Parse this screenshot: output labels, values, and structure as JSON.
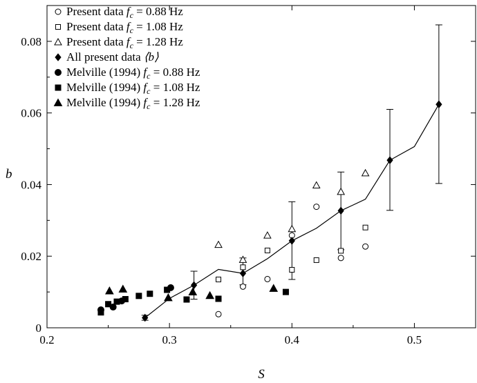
{
  "chart_data": {
    "type": "scatter",
    "xlabel": "S",
    "ylabel": "b",
    "xlim": [
      0.2,
      0.55
    ],
    "ylim": [
      0,
      0.09
    ],
    "x_ticks": [
      "0.2",
      "0.3",
      "0.4",
      "0.5"
    ],
    "y_ticks": [
      "0",
      "0.02",
      "0.04",
      "0.06",
      "0.08"
    ],
    "legend_position": "top-left",
    "series": [
      {
        "name": "Present data  f_c = 0.88 Hz",
        "marker": "circle-open",
        "legend_prefix": "Present data ",
        "legend_f": "f",
        "legend_sub": "c",
        "legend_suffix": " = 0.88 Hz",
        "points": [
          [
            0.34,
            0.0038
          ],
          [
            0.36,
            0.0115
          ],
          [
            0.38,
            0.0136
          ],
          [
            0.4,
            0.0258
          ],
          [
            0.42,
            0.0338
          ],
          [
            0.44,
            0.0195
          ],
          [
            0.46,
            0.0227
          ]
        ]
      },
      {
        "name": "Present data  f_c = 1.08 Hz",
        "marker": "square-open",
        "legend_prefix": "Present data ",
        "legend_f": "f",
        "legend_sub": "c",
        "legend_suffix": " = 1.08 Hz",
        "points": [
          [
            0.34,
            0.0135
          ],
          [
            0.36,
            0.0169
          ],
          [
            0.38,
            0.0216
          ],
          [
            0.4,
            0.0162
          ],
          [
            0.42,
            0.0189
          ],
          [
            0.44,
            0.0215
          ],
          [
            0.46,
            0.028
          ]
        ]
      },
      {
        "name": "Present data  f_c = 1.28 Hz",
        "marker": "triangle-open",
        "legend_prefix": "Present data ",
        "legend_f": "f",
        "legend_sub": "c",
        "legend_suffix": " = 1.28 Hz",
        "points": [
          [
            0.34,
            0.0232
          ],
          [
            0.36,
            0.019
          ],
          [
            0.38,
            0.0258
          ],
          [
            0.4,
            0.0276
          ],
          [
            0.42,
            0.0398
          ],
          [
            0.44,
            0.038
          ],
          [
            0.46,
            0.0432
          ]
        ]
      },
      {
        "name": "All present data ⟨b⟩",
        "marker": "diamond-filled",
        "legend_prefix": "All present data ",
        "legend_f": "",
        "legend_sub": "",
        "legend_suffix": "",
        "legend_bracket": "⟨b⟩",
        "points": [
          [
            0.28,
            0.0028
          ],
          [
            0.32,
            0.0119
          ],
          [
            0.36,
            0.0152
          ],
          [
            0.4,
            0.0243
          ],
          [
            0.44,
            0.0327
          ],
          [
            0.48,
            0.0468
          ],
          [
            0.52,
            0.0624
          ]
        ],
        "error_bars": [
          [
            0.0021,
            0.0035
          ],
          [
            0.008,
            0.0158
          ],
          [
            0.012,
            0.0195
          ],
          [
            0.0135,
            0.0352
          ],
          [
            0.0218,
            0.0435
          ],
          [
            0.0328,
            0.061
          ],
          [
            0.0403,
            0.0846
          ]
        ]
      },
      {
        "name": "Melville (1994)  f_c = 0.88 Hz",
        "marker": "circle-filled",
        "legend_prefix": "Melville (1994)  ",
        "legend_f": "f",
        "legend_sub": "c",
        "legend_suffix": " = 0.88 Hz",
        "points": [
          [
            0.244,
            0.005
          ],
          [
            0.254,
            0.0058
          ],
          [
            0.261,
            0.0075
          ],
          [
            0.301,
            0.0112
          ]
        ]
      },
      {
        "name": "Melville (1994)  f_c = 1.08 Hz",
        "marker": "square-filled",
        "legend_prefix": "Melville (1994)  ",
        "legend_f": "f",
        "legend_sub": "c",
        "legend_suffix": " = 1.08 Hz",
        "points": [
          [
            0.244,
            0.0043
          ],
          [
            0.25,
            0.0066
          ],
          [
            0.257,
            0.0073
          ],
          [
            0.264,
            0.008
          ],
          [
            0.275,
            0.0089
          ],
          [
            0.284,
            0.0095
          ],
          [
            0.298,
            0.0106
          ],
          [
            0.314,
            0.0079
          ],
          [
            0.34,
            0.0081
          ],
          [
            0.395,
            0.01
          ]
        ]
      },
      {
        "name": "Melville (1994)  f_c = 1.28 Hz",
        "marker": "triangle-filled",
        "legend_prefix": "Melville (1994)  ",
        "legend_f": "f",
        "legend_sub": "c",
        "legend_suffix": " = 1.28 Hz",
        "points": [
          [
            0.251,
            0.0103
          ],
          [
            0.262,
            0.0108
          ],
          [
            0.299,
            0.0084
          ],
          [
            0.319,
            0.01
          ],
          [
            0.333,
            0.009
          ],
          [
            0.385,
            0.011
          ]
        ]
      }
    ],
    "trend_line": {
      "points": [
        [
          0.28,
          0.0028
        ],
        [
          0.3,
          0.0082
        ],
        [
          0.32,
          0.0119
        ],
        [
          0.34,
          0.0163
        ],
        [
          0.36,
          0.0152
        ],
        [
          0.38,
          0.0193
        ],
        [
          0.4,
          0.0243
        ],
        [
          0.42,
          0.0278
        ],
        [
          0.44,
          0.0327
        ],
        [
          0.46,
          0.0359
        ],
        [
          0.48,
          0.0468
        ],
        [
          0.5,
          0.0506
        ],
        [
          0.52,
          0.0624
        ]
      ]
    }
  }
}
